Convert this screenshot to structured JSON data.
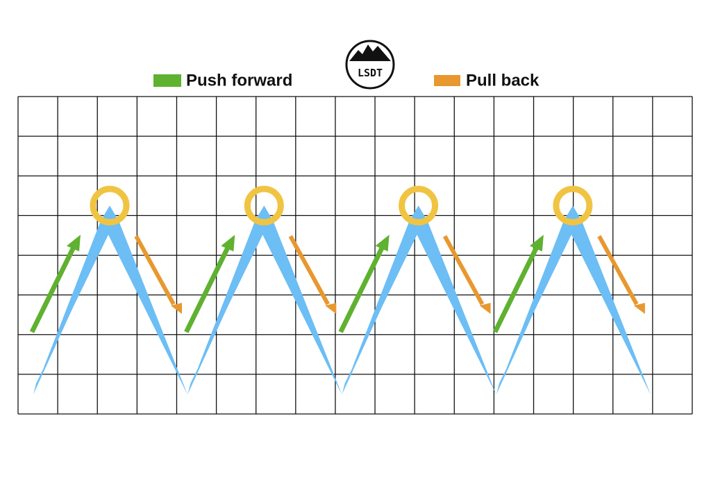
{
  "legend": {
    "push": "Push forward",
    "pull": "Pull back"
  },
  "logo": "LSDT"
}
